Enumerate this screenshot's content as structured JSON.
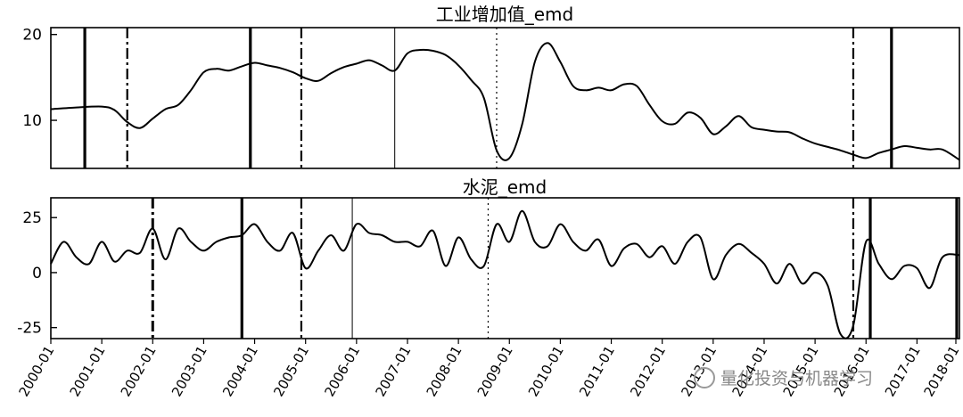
{
  "watermark": "量化投资与机器学习",
  "x_tick_labels": [
    "2000-01",
    "2001-01",
    "2002-01",
    "2003-01",
    "2004-01",
    "2005-01",
    "2006-01",
    "2007-01",
    "2008-01",
    "2009-01",
    "2010-01",
    "2011-01",
    "2012-01",
    "2013-01",
    "2014-01",
    "2015-01",
    "2016-01",
    "2017-01",
    "2018-01"
  ],
  "chart_data": [
    {
      "type": "line",
      "title": "工业增加值_emd",
      "xlabel": "",
      "ylabel": "",
      "x_range": [
        "2000-01",
        "2017-11"
      ],
      "ylim": [
        4.4,
        20.8
      ],
      "y_ticks": [
        10,
        20
      ],
      "line_color": "#000000",
      "x": [
        "2000-01",
        "2000-07",
        "2001-01",
        "2001-04",
        "2001-07",
        "2001-10",
        "2002-01",
        "2002-04",
        "2002-07",
        "2002-10",
        "2003-01",
        "2003-04",
        "2003-07",
        "2003-10",
        "2004-01",
        "2004-04",
        "2004-07",
        "2004-10",
        "2005-01",
        "2005-04",
        "2005-07",
        "2005-10",
        "2006-01",
        "2006-04",
        "2006-07",
        "2006-10",
        "2007-01",
        "2007-04",
        "2007-07",
        "2007-10",
        "2008-01",
        "2008-04",
        "2008-07",
        "2008-10",
        "2009-01",
        "2009-04",
        "2009-07",
        "2009-10",
        "2010-01",
        "2010-04",
        "2010-07",
        "2010-10",
        "2011-01",
        "2011-04",
        "2011-07",
        "2011-10",
        "2012-01",
        "2012-04",
        "2012-07",
        "2012-10",
        "2013-01",
        "2013-04",
        "2013-07",
        "2013-10",
        "2014-01",
        "2014-04",
        "2014-07",
        "2014-10",
        "2015-01",
        "2015-04",
        "2015-07",
        "2015-10",
        "2016-01",
        "2016-04",
        "2016-07",
        "2016-10",
        "2017-01",
        "2017-04",
        "2017-07",
        "2017-11"
      ],
      "y": [
        11.3,
        11.5,
        11.6,
        11.2,
        9.8,
        9.1,
        10.2,
        11.3,
        11.8,
        13.5,
        15.6,
        16.0,
        15.8,
        16.3,
        16.7,
        16.4,
        16.1,
        15.6,
        14.9,
        14.6,
        15.5,
        16.2,
        16.6,
        17.0,
        16.4,
        15.8,
        17.8,
        18.2,
        18.1,
        17.6,
        16.4,
        14.7,
        12.6,
        6.5,
        5.6,
        9.5,
        16.8,
        19.0,
        16.8,
        14.0,
        13.5,
        13.8,
        13.5,
        14.2,
        14.0,
        11.8,
        9.9,
        9.6,
        10.9,
        10.3,
        8.4,
        9.3,
        10.5,
        9.2,
        8.9,
        8.7,
        8.6,
        7.9,
        7.3,
        6.9,
        6.5,
        6.0,
        5.6,
        6.2,
        6.6,
        7.0,
        6.8,
        6.6,
        6.6,
        5.4
      ],
      "vertical_lines": [
        {
          "x": "2000-09",
          "style": "solid-thick"
        },
        {
          "x": "2001-07",
          "style": "dashdot"
        },
        {
          "x": "2003-12",
          "style": "solid-thick"
        },
        {
          "x": "2004-12",
          "style": "dashdot"
        },
        {
          "x": "2006-10",
          "style": "solid-thin"
        },
        {
          "x": "2008-10",
          "style": "dotted"
        },
        {
          "x": "2015-10",
          "style": "dashdot"
        },
        {
          "x": "2016-07",
          "style": "solid-thick"
        }
      ]
    },
    {
      "type": "line",
      "title": "水泥_emd",
      "xlabel": "",
      "ylabel": "",
      "x_range": [
        "2000-01",
        "2017-11"
      ],
      "ylim": [
        -30,
        34
      ],
      "y_ticks": [
        -25,
        0,
        25
      ],
      "line_color": "#000000",
      "x": [
        "2000-01",
        "2000-04",
        "2000-07",
        "2000-10",
        "2001-01",
        "2001-04",
        "2001-07",
        "2001-10",
        "2002-01",
        "2002-04",
        "2002-07",
        "2002-10",
        "2003-01",
        "2003-04",
        "2003-07",
        "2003-10",
        "2004-01",
        "2004-04",
        "2004-07",
        "2004-10",
        "2005-01",
        "2005-04",
        "2005-07",
        "2005-10",
        "2006-01",
        "2006-04",
        "2006-07",
        "2006-10",
        "2007-01",
        "2007-04",
        "2007-07",
        "2007-10",
        "2008-01",
        "2008-04",
        "2008-07",
        "2008-10",
        "2009-01",
        "2009-04",
        "2009-07",
        "2009-10",
        "2010-01",
        "2010-04",
        "2010-07",
        "2010-10",
        "2011-01",
        "2011-04",
        "2011-07",
        "2011-10",
        "2012-01",
        "2012-04",
        "2012-07",
        "2012-10",
        "2013-01",
        "2013-04",
        "2013-07",
        "2013-10",
        "2014-01",
        "2014-04",
        "2014-07",
        "2014-10",
        "2015-01",
        "2015-04",
        "2015-07",
        "2015-10",
        "2016-01",
        "2016-04",
        "2016-07",
        "2016-10",
        "2017-01",
        "2017-04",
        "2017-07",
        "2017-11"
      ],
      "y": [
        4,
        14,
        7,
        4,
        14,
        5,
        10,
        9,
        20,
        6,
        20,
        14,
        10,
        14,
        16,
        17,
        22,
        14,
        10,
        18,
        2,
        10,
        17,
        10,
        22,
        18,
        17,
        14,
        14,
        12,
        19,
        3,
        16,
        6,
        3,
        22,
        14,
        28,
        14,
        12,
        22,
        14,
        10,
        15,
        3,
        11,
        13,
        7,
        12,
        4,
        14,
        16,
        -3,
        8,
        13,
        9,
        4,
        -5,
        4,
        -5,
        0,
        -6,
        -28,
        -24,
        14,
        4,
        -3,
        3,
        2,
        -7,
        7,
        8
      ],
      "vertical_lines": [
        {
          "x": "2002-01",
          "style": "dashdot-thick"
        },
        {
          "x": "2003-10",
          "style": "solid-thick"
        },
        {
          "x": "2004-12",
          "style": "dashdot"
        },
        {
          "x": "2005-12",
          "style": "solid-thin"
        },
        {
          "x": "2008-08",
          "style": "dotted"
        },
        {
          "x": "2015-10",
          "style": "dashdot"
        },
        {
          "x": "2016-02",
          "style": "solid-thick"
        },
        {
          "x": "2018-08",
          "style": "dashdot-thick"
        },
        {
          "x": "2019-03",
          "style": "solid-thick"
        }
      ]
    }
  ]
}
